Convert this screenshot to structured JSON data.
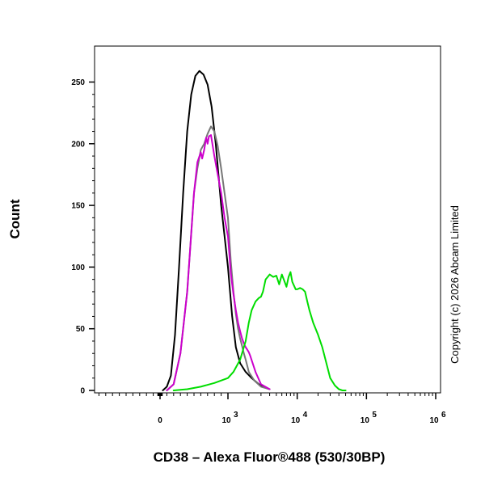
{
  "chart_data": {
    "type": "line",
    "title": "",
    "xlabel": "CD38 – Alexa Fluor®488 (530/30BP)",
    "ylabel": "Count",
    "x_scale": "biexponential",
    "xlim": [
      -1000,
      1000000
    ],
    "ylim": [
      0,
      270
    ],
    "y_ticks": [
      0,
      50,
      100,
      150,
      200,
      250
    ],
    "x_ticks": [
      {
        "value": 0,
        "label": "0"
      },
      {
        "value": 1000,
        "label": "10",
        "exp": "3"
      },
      {
        "value": 10000,
        "label": "10",
        "exp": "4"
      },
      {
        "value": 100000,
        "label": "10",
        "exp": "5"
      },
      {
        "value": 1000000,
        "label": "10",
        "exp": "6"
      }
    ],
    "grid": false,
    "legend": "none",
    "series": [
      {
        "color": "#000000",
        "x": [
          40,
          100,
          160,
          220,
          280,
          340,
          400,
          460,
          520,
          580,
          640,
          700,
          760,
          820,
          900,
          1000,
          1150,
          1300,
          1500,
          1800,
          2200,
          2800,
          3500
        ],
        "values": [
          0,
          3,
          12,
          45,
          100,
          160,
          210,
          240,
          255,
          259,
          256,
          248,
          230,
          200,
          150,
          100,
          60,
          35,
          22,
          15,
          10,
          5,
          2
        ]
      },
      {
        "color": "#777777",
        "x": [
          100,
          200,
          300,
          400,
          450,
          500,
          550,
          600,
          650,
          700,
          750,
          800,
          850,
          900,
          950,
          1000,
          1100,
          1200,
          1300,
          1400,
          1500,
          1600,
          1700,
          1800,
          1900,
          2000,
          2400,
          3000,
          4000
        ],
        "values": [
          0,
          5,
          30,
          80,
          120,
          160,
          180,
          195,
          200,
          208,
          214,
          210,
          198,
          180,
          160,
          140,
          105,
          80,
          62,
          50,
          42,
          36,
          30,
          25,
          20,
          15,
          8,
          3,
          1
        ]
      },
      {
        "color": "#cc00cc",
        "x": [
          100,
          200,
          300,
          400,
          450,
          500,
          550,
          600,
          620,
          650,
          680,
          700,
          720,
          750,
          800,
          850,
          900,
          950,
          1000,
          1050,
          1100,
          1200,
          1300,
          1400,
          1500,
          1600,
          1700,
          1800,
          1900,
          2000,
          2100,
          2500,
          3000,
          4000
        ],
        "values": [
          0,
          5,
          30,
          80,
          120,
          160,
          185,
          193,
          188,
          195,
          205,
          200,
          206,
          207,
          190,
          175,
          160,
          140,
          125,
          110,
          95,
          78,
          65,
          55,
          48,
          42,
          38,
          35,
          33,
          31,
          28,
          15,
          5,
          1
        ]
      },
      {
        "color": "#00dd00",
        "x": [
          200,
          400,
          600,
          800,
          1000,
          1200,
          1500,
          1800,
          2000,
          2200,
          2500,
          2800,
          3000,
          3200,
          3500,
          4000,
          4500,
          5000,
          5500,
          6000,
          6500,
          7000,
          7500,
          8000,
          8500,
          9000,
          9500,
          10000,
          11000,
          12000,
          13000,
          14000,
          15000,
          17000,
          20000,
          23000,
          27000,
          30000,
          35000,
          40000,
          45000,
          50000
        ],
        "values": [
          0,
          1,
          3,
          6,
          10,
          15,
          25,
          40,
          55,
          65,
          72,
          75,
          76,
          80,
          90,
          94,
          92,
          93,
          86,
          94,
          89,
          84,
          92,
          96,
          88,
          85,
          82,
          82,
          83,
          82,
          80,
          72,
          65,
          55,
          45,
          35,
          20,
          10,
          4,
          1,
          0,
          0
        ]
      }
    ],
    "annotations": [
      "Copyright (c) 2026 Abcam Limited"
    ]
  }
}
